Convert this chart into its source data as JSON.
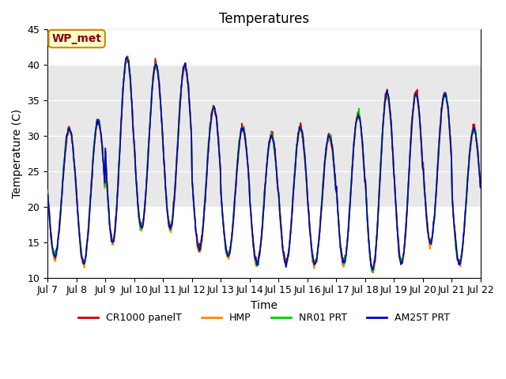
{
  "title": "Temperatures",
  "xlabel": "Time",
  "ylabel": "Temperature (C)",
  "ylim": [
    10,
    45
  ],
  "xlim": [
    0,
    15
  ],
  "xtick_labels": [
    "Jul 7",
    "Jul 8",
    "Jul 9",
    "Jul 10",
    "Jul 11",
    "Jul 12",
    "Jul 13",
    "Jul 14",
    "Jul 15",
    "Jul 16",
    "Jul 17",
    "Jul 18",
    "Jul 19",
    "Jul 20",
    "Jul 21",
    "Jul 22"
  ],
  "shaded_band": [
    20,
    40
  ],
  "shaded_color": "#e8e8e8",
  "annotation_text": "WP_met",
  "annotation_box_facecolor": "#ffffcc",
  "annotation_box_edgecolor": "#cc8800",
  "series_colors": [
    "#cc0000",
    "#ff8800",
    "#00cc00",
    "#0000cc"
  ],
  "series_labels": [
    "CR1000 panelT",
    "HMP",
    "NR01 PRT",
    "AM25T PRT"
  ],
  "series_linewidths": [
    1.5,
    1.5,
    1.5,
    1.5
  ],
  "background_color": "#ffffff",
  "title_fontsize": 12,
  "axis_fontsize": 10,
  "tick_fontsize": 9
}
